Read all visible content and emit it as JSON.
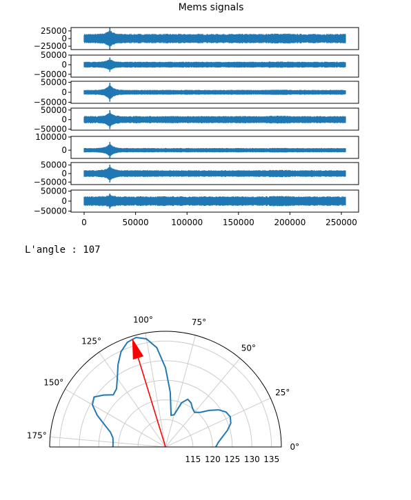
{
  "colors": {
    "signal": "#1f77b4",
    "pattern": "#1f77b4",
    "arrow": "#ff0000",
    "grid": "#cccccc",
    "axes": "#000000"
  },
  "output": {
    "label": "L'angle :",
    "value": "107"
  },
  "chart_data": [
    {
      "type": "line",
      "title": "Mems signals",
      "x_ticks": [
        0,
        50000,
        100000,
        150000,
        200000,
        250000
      ],
      "x_range": [
        0,
        254000
      ],
      "signal_length": 254000,
      "event_index": 25000,
      "series": [
        {
          "ylim": [
            -36000,
            36000
          ],
          "y_ticks": [
            25000,
            0,
            -25000
          ],
          "amplitude": 14000,
          "spike": 28000
        },
        {
          "ylim": [
            -65000,
            50000
          ],
          "y_ticks": [
            50000,
            0,
            -50000
          ],
          "amplitude": 14000,
          "spike": 30000
        },
        {
          "ylim": [
            -55000,
            55000
          ],
          "y_ticks": [
            50000,
            0,
            -50000
          ],
          "amplitude": 11000,
          "spike": 38000
        },
        {
          "ylim": [
            -55000,
            60000
          ],
          "y_ticks": [
            50000,
            0,
            -50000
          ],
          "amplitude": 17000,
          "spike": 40000
        },
        {
          "ylim": [
            -62000,
            105000
          ],
          "y_ticks": [
            100000,
            0
          ],
          "amplitude": 15000,
          "spike": 50000
        },
        {
          "ylim": [
            -65000,
            65000
          ],
          "y_ticks": [
            50000,
            0,
            -50000
          ],
          "amplitude": 18000,
          "spike": 42000
        },
        {
          "ylim": [
            -55000,
            55000
          ],
          "y_ticks": [
            50000,
            0,
            -50000
          ],
          "amplitude": 22000,
          "spike": 30000
        }
      ]
    },
    {
      "type": "polar",
      "theta_range": [
        0,
        180
      ],
      "theta_ticks": [
        0,
        25,
        50,
        75,
        100,
        125,
        150,
        175
      ],
      "r_range": [
        108,
        137.5
      ],
      "r_ticks": [
        115,
        120,
        125,
        130,
        135
      ],
      "pattern": [
        [
          0,
          120.8
        ],
        [
          5,
          121.5
        ],
        [
          10,
          122.7
        ],
        [
          15,
          124.3
        ],
        [
          20,
          125.7
        ],
        [
          25,
          126.2
        ],
        [
          30,
          125.8
        ],
        [
          35,
          124.5
        ],
        [
          40,
          122.5
        ],
        [
          45,
          120.5
        ],
        [
          50,
          119.5
        ],
        [
          55,
          120.0
        ],
        [
          60,
          121.0
        ],
        [
          65,
          121.4
        ],
        [
          70,
          120.0
        ],
        [
          75,
          116.5
        ],
        [
          80,
          116.2
        ],
        [
          85,
          122.0
        ],
        [
          90,
          128.2
        ],
        [
          95,
          133.4
        ],
        [
          100,
          136.0
        ],
        [
          105,
          136.9
        ],
        [
          110,
          136.4
        ],
        [
          115,
          134.8
        ],
        [
          120,
          132.2
        ],
        [
          125,
          129.4
        ],
        [
          130,
          127.4
        ],
        [
          135,
          126.8
        ],
        [
          140,
          128.6
        ],
        [
          145,
          130.2
        ],
        [
          150,
          129.5
        ],
        [
          155,
          127.2
        ],
        [
          160,
          124.5
        ],
        [
          165,
          122.5
        ],
        [
          170,
          121.6
        ],
        [
          175,
          121.4
        ],
        [
          180,
          121.4
        ]
      ],
      "arrow_angle": 107,
      "arrow_r": 137
    }
  ]
}
